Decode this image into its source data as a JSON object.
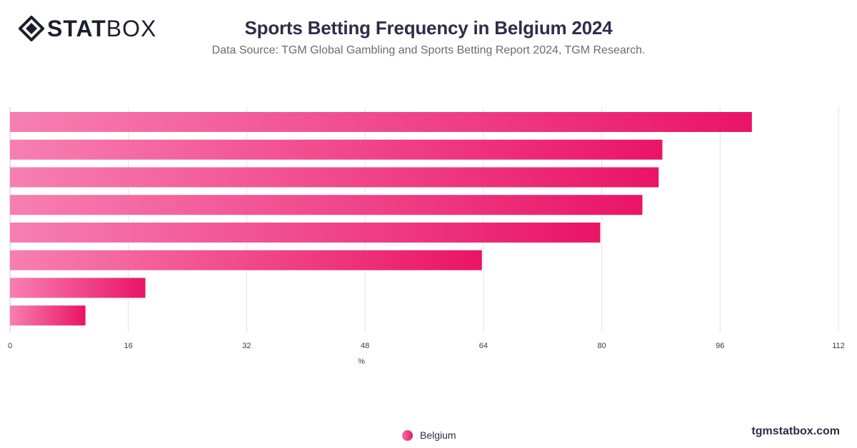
{
  "brand": {
    "logo_bold": "STAT",
    "logo_light": "BOX",
    "site": "tgmstatbox.com"
  },
  "header": {
    "title": "Sports Betting Frequency in Belgium 2024",
    "subtitle": "Data Source: TGM Global Gambling and Sports Betting Report 2024, TGM Research."
  },
  "colors": {
    "bar_start": "#f77fb1",
    "bar_end": "#ea1466",
    "grid": "#e3e3e8",
    "axis_text": "#3a3a4a"
  },
  "chart_data": {
    "type": "bar",
    "orientation": "horizontal",
    "categories": [
      "",
      "",
      "",
      "",
      "",
      "",
      "",
      ""
    ],
    "series": [
      {
        "name": "Belgium",
        "values": [
          100.3,
          88.2,
          87.7,
          85.5,
          79.8,
          63.8,
          18.3,
          10.2
        ]
      }
    ],
    "xlabel": "%",
    "xlim": [
      0,
      112
    ],
    "xticks": [
      "0",
      "16",
      "32",
      "48",
      "64",
      "80",
      "96",
      "112"
    ],
    "grid": true,
    "legend_position": "bottom-center"
  }
}
